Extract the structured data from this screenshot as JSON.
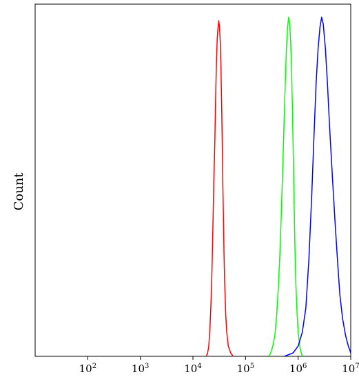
{
  "chart_data": {
    "type": "line",
    "title": "",
    "xlabel": "",
    "ylabel": "Count",
    "x_scale": "log",
    "xlim": [
      10,
      10000000
    ],
    "ylim": [
      0,
      1
    ],
    "grid": false,
    "x_ticks": [
      {
        "value": 100,
        "base": "10",
        "exp": "2"
      },
      {
        "value": 1000,
        "base": "10",
        "exp": "3"
      },
      {
        "value": 10000,
        "base": "10",
        "exp": "4"
      },
      {
        "value": 100000,
        "base": "10",
        "exp": "5"
      },
      {
        "value": 1000000,
        "base": "10",
        "exp": "6"
      },
      {
        "value": 10000000,
        "base": "10",
        "exp": "7"
      }
    ],
    "series": [
      {
        "color": "#ff0000",
        "points": [
          [
            18000,
            0.0
          ],
          [
            19000,
            0.01
          ],
          [
            20000,
            0.03
          ],
          [
            21000,
            0.08
          ],
          [
            22000,
            0.15
          ],
          [
            23000,
            0.25
          ],
          [
            24000,
            0.38
          ],
          [
            25000,
            0.52
          ],
          [
            26000,
            0.62
          ],
          [
            27000,
            0.75
          ],
          [
            28000,
            0.86
          ],
          [
            29000,
            0.93
          ],
          [
            30000,
            0.96
          ],
          [
            31000,
            0.98
          ],
          [
            32000,
            0.96
          ],
          [
            33000,
            0.92
          ],
          [
            34000,
            0.85
          ],
          [
            35000,
            0.75
          ],
          [
            36000,
            0.63
          ],
          [
            37000,
            0.5
          ],
          [
            38000,
            0.4
          ],
          [
            39000,
            0.3
          ],
          [
            40000,
            0.22
          ],
          [
            42000,
            0.12
          ],
          [
            44000,
            0.07
          ],
          [
            47000,
            0.03
          ],
          [
            52000,
            0.01
          ],
          [
            58000,
            0.0
          ]
        ]
      },
      {
        "color": "#00ff00",
        "points": [
          [
            280000,
            0.0
          ],
          [
            300000,
            0.01
          ],
          [
            330000,
            0.03
          ],
          [
            360000,
            0.06
          ],
          [
            390000,
            0.12
          ],
          [
            420000,
            0.2
          ],
          [
            450000,
            0.3
          ],
          [
            480000,
            0.42
          ],
          [
            510000,
            0.55
          ],
          [
            540000,
            0.68
          ],
          [
            570000,
            0.8
          ],
          [
            600000,
            0.9
          ],
          [
            630000,
            0.96
          ],
          [
            660000,
            0.99
          ],
          [
            690000,
            0.97
          ],
          [
            720000,
            0.92
          ],
          [
            750000,
            0.84
          ],
          [
            780000,
            0.72
          ],
          [
            810000,
            0.58
          ],
          [
            840000,
            0.44
          ],
          [
            870000,
            0.32
          ],
          [
            900000,
            0.22
          ],
          [
            950000,
            0.13
          ],
          [
            1000000,
            0.07
          ],
          [
            1100000,
            0.02
          ],
          [
            1200000,
            0.0
          ]
        ]
      },
      {
        "color": "#0000ff",
        "points": [
          [
            550000,
            0.0
          ],
          [
            800000,
            0.01
          ],
          [
            1000000,
            0.03
          ],
          [
            1200000,
            0.07
          ],
          [
            1400000,
            0.14
          ],
          [
            1600000,
            0.28
          ],
          [
            1800000,
            0.46
          ],
          [
            2000000,
            0.64
          ],
          [
            2200000,
            0.8
          ],
          [
            2400000,
            0.9
          ],
          [
            2600000,
            0.96
          ],
          [
            2800000,
            0.99
          ],
          [
            3000000,
            0.97
          ],
          [
            3300000,
            0.9
          ],
          [
            3600000,
            0.8
          ],
          [
            4000000,
            0.66
          ],
          [
            4500000,
            0.52
          ],
          [
            5000000,
            0.4
          ],
          [
            5600000,
            0.28
          ],
          [
            6200000,
            0.18
          ],
          [
            7000000,
            0.11
          ],
          [
            8000000,
            0.06
          ],
          [
            9000000,
            0.03
          ],
          [
            10000000,
            0.01
          ]
        ]
      }
    ]
  }
}
